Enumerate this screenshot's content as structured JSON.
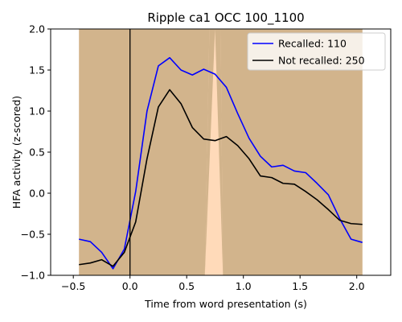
{
  "chart_data": {
    "type": "line",
    "title": "Ripple ca1 OCC 100_1100",
    "xlabel": "Time from word presentation (s)",
    "ylabel": "HFA activity (z-scored)",
    "xlim": [
      -0.7,
      2.3
    ],
    "ylim": [
      -1.0,
      2.0
    ],
    "xticks": [
      -0.5,
      0.0,
      0.5,
      1.0,
      1.5,
      2.0
    ],
    "xtick_labels": [
      "−0.5",
      "0.0",
      "0.5",
      "1.0",
      "1.5",
      "2.0"
    ],
    "yticks": [
      -1.0,
      -0.5,
      0.0,
      0.5,
      1.0,
      1.5,
      2.0
    ],
    "ytick_labels": [
      "−1.0",
      "−0.5",
      "0.0",
      "0.5",
      "1.0",
      "1.5",
      "2.0"
    ],
    "grid": false,
    "legend_position": "top-right",
    "vline_x": 0.0,
    "significance_shading": {
      "color": "#D2B48C",
      "gap_color": "#FFDAB9",
      "x_start": -0.45,
      "x_end": 2.05,
      "gap": [
        0.7,
        0.75,
        0.8
      ],
      "gap_bottom": [
        0.66,
        0.82
      ]
    },
    "x": [
      -0.45,
      -0.35,
      -0.25,
      -0.15,
      -0.05,
      0.05,
      0.15,
      0.25,
      0.35,
      0.45,
      0.55,
      0.65,
      0.75,
      0.85,
      0.95,
      1.05,
      1.15,
      1.25,
      1.35,
      1.45,
      1.55,
      1.65,
      1.75,
      1.85,
      1.95,
      2.05
    ],
    "series": [
      {
        "name": "Recalled: 110",
        "color": "#0000FF",
        "values": [
          -0.56,
          -0.59,
          -0.72,
          -0.92,
          -0.68,
          0.02,
          1.0,
          1.55,
          1.65,
          1.5,
          1.44,
          1.51,
          1.45,
          1.29,
          0.97,
          0.67,
          0.45,
          0.32,
          0.34,
          0.27,
          0.25,
          0.12,
          -0.02,
          -0.31,
          -0.56,
          -0.6
        ]
      },
      {
        "name": "Not recalled: 250",
        "color": "#000000",
        "values": [
          -0.87,
          -0.85,
          -0.81,
          -0.89,
          -0.72,
          -0.35,
          0.42,
          1.05,
          1.26,
          1.09,
          0.8,
          0.66,
          0.64,
          0.69,
          0.58,
          0.42,
          0.21,
          0.19,
          0.12,
          0.11,
          0.02,
          -0.08,
          -0.2,
          -0.33,
          -0.37,
          -0.38
        ]
      }
    ]
  }
}
